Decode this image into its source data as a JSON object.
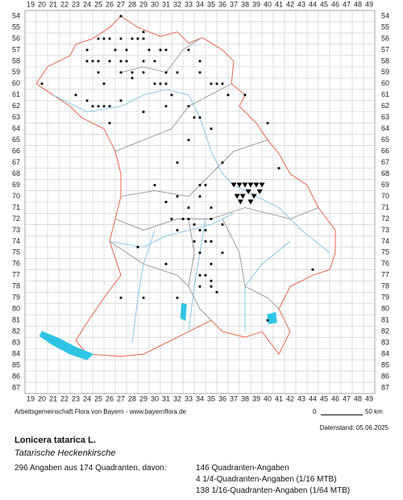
{
  "map": {
    "grid": {
      "columns": [
        19,
        20,
        21,
        22,
        23,
        24,
        25,
        26,
        27,
        28,
        29,
        30,
        31,
        32,
        33,
        34,
        35,
        36,
        37,
        38,
        39,
        40,
        41,
        42,
        43,
        44,
        45,
        46,
        47,
        48,
        49
      ],
      "rows": [
        54,
        55,
        56,
        57,
        58,
        59,
        60,
        61,
        62,
        63,
        64,
        65,
        66,
        67,
        68,
        69,
        70,
        71,
        72,
        73,
        74,
        75,
        76,
        77,
        78,
        79,
        80,
        81,
        82,
        83,
        84,
        85,
        86,
        87
      ]
    },
    "credit": "Arbeitsgemeinschaft Flora von Bayern - www.bayernflora.de",
    "scale": {
      "start": "0",
      "end": "50 km"
    },
    "data_date": "Datenstand: 05.06.2025",
    "species": {
      "name": "Lonicera tatarica L.",
      "common_name": "Tatarische Heckenkirsche"
    },
    "stats": {
      "summary": "296 Angaben aus 174 Quadranten, davon:",
      "lines": [
        "146 Quadranten-Angaben",
        "4 1/4-Quadranten-Angaben (1/16 MTB)",
        "138 1/16-Quadranten-Angaben (1/64 MTB)"
      ]
    }
  }
}
